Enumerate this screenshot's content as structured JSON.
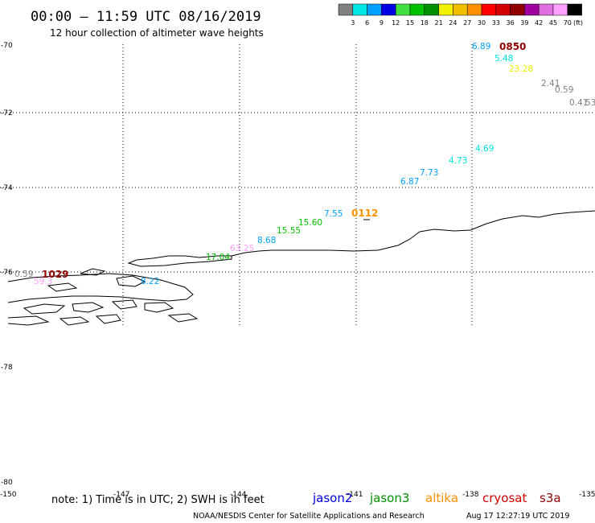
{
  "title": "00:00 – 11:59 UTC 08/16/2019",
  "subtitle": "12 hour collection of altimeter wave heights",
  "legend": {
    "unit": "(ft)",
    "bins": [
      {
        "label": "3",
        "color": "#808080"
      },
      {
        "label": "6",
        "color": "#00e5e5"
      },
      {
        "label": "9",
        "color": "#00a0ff"
      },
      {
        "label": "12",
        "color": "#0000e0"
      },
      {
        "label": "15",
        "color": "#40e040"
      },
      {
        "label": "18",
        "color": "#00c000"
      },
      {
        "label": "21",
        "color": "#009000"
      },
      {
        "label": "24",
        "color": "#f0f000"
      },
      {
        "label": "27",
        "color": "#f0c000"
      },
      {
        "label": "30",
        "color": "#ff9000"
      },
      {
        "label": "33",
        "color": "#ff0000"
      },
      {
        "label": "36",
        "color": "#d00000"
      },
      {
        "label": "39",
        "color": "#900000"
      },
      {
        "label": "42",
        "color": "#a000a0"
      },
      {
        "label": "45",
        "color": "#e070e0"
      },
      {
        "label": "70",
        "color": "#ffa0ff"
      },
      {
        "label": "",
        "color": "#000000"
      }
    ]
  },
  "axes": {
    "lat_labels": [
      "-70",
      "-72",
      "-74",
      "-76",
      "-78",
      "-80"
    ],
    "lon_labels": [
      "-150",
      "-147",
      "-144",
      "-141",
      "-138",
      "-135"
    ]
  },
  "observations": [
    {
      "text": "6.89",
      "color": "#00a0ff"
    },
    {
      "text": "5.48",
      "color": "#00e5e5"
    },
    {
      "text": "23.28",
      "color": "#f0f000"
    },
    {
      "text": "2.41",
      "color": "#808080"
    },
    {
      "text": "0.59",
      "color": "#808080"
    },
    {
      "text": "0.41",
      "color": "#808080"
    },
    {
      "text": "53",
      "color": "#808080"
    },
    {
      "text": "4.69",
      "color": "#00e5e5"
    },
    {
      "text": "4.73",
      "color": "#00e5e5"
    },
    {
      "text": "7.73",
      "color": "#00a0ff"
    },
    {
      "text": "6.87",
      "color": "#00a0ff"
    },
    {
      "text": "7.55",
      "color": "#00a0ff"
    },
    {
      "text": "15.60",
      "color": "#00c000"
    },
    {
      "text": "15.55",
      "color": "#00c000"
    },
    {
      "text": "8.68",
      "color": "#00a0ff"
    },
    {
      "text": "63.25",
      "color": "#ffa0ff"
    },
    {
      "text": "17.04",
      "color": "#00c000"
    },
    {
      "text": "8.22",
      "color": "#00a0ff"
    },
    {
      "text": "0.59",
      "color": "#808080"
    },
    {
      "text": "59.3",
      "color": "#ffa0ff"
    }
  ],
  "pass_times": [
    {
      "text": "0850",
      "color": "#900000"
    },
    {
      "text": "0112",
      "color": "#ff9000"
    },
    {
      "text": "1029",
      "color": "#900000"
    }
  ],
  "note": "note: 1) Time is in UTC; 2) SWH is in feet",
  "satellites": [
    {
      "name": "jason2",
      "color": "#0000e0"
    },
    {
      "name": "jason3",
      "color": "#009000"
    },
    {
      "name": "altika",
      "color": "#ff9000"
    },
    {
      "name": "cryosat",
      "color": "#d00000"
    },
    {
      "name": "s3a",
      "color": "#900000"
    }
  ],
  "footer_left": "NOAA/NESDIS Center for Satellite Applications and Research",
  "footer_right": "Aug 17 12:27:19 UTC 2019"
}
